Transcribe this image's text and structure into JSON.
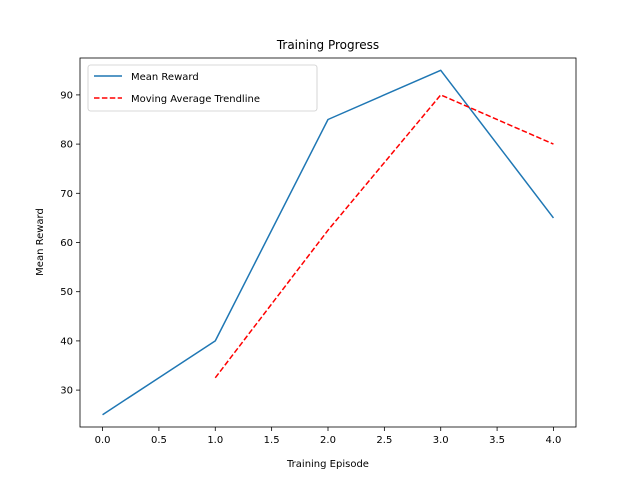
{
  "chart_data": {
    "type": "line",
    "title": "Training Progress",
    "xlabel": "Training Episode",
    "ylabel": "Mean Reward",
    "xlim": [
      -0.2,
      4.2
    ],
    "ylim": [
      22.5,
      97.5
    ],
    "xticks": [
      0.0,
      0.5,
      1.0,
      1.5,
      2.0,
      2.5,
      3.0,
      3.5,
      4.0
    ],
    "xtick_labels": [
      "0.0",
      "0.5",
      "1.0",
      "1.5",
      "2.0",
      "2.5",
      "3.0",
      "3.5",
      "4.0"
    ],
    "yticks": [
      30,
      40,
      50,
      60,
      70,
      80,
      90
    ],
    "ytick_labels": [
      "30",
      "40",
      "50",
      "60",
      "70",
      "80",
      "90"
    ],
    "grid": false,
    "legend_position": "top-left",
    "series": [
      {
        "name": "Mean Reward",
        "x": [
          0,
          1,
          2,
          3,
          4
        ],
        "y": [
          25,
          40,
          85,
          95,
          65
        ],
        "color": "#1f77b4",
        "style": "solid"
      },
      {
        "name": "Moving Average Trendline",
        "x": [
          1,
          2,
          3,
          4
        ],
        "y": [
          32.5,
          62.5,
          90,
          80
        ],
        "color": "#ff0000",
        "style": "dashed"
      }
    ]
  }
}
